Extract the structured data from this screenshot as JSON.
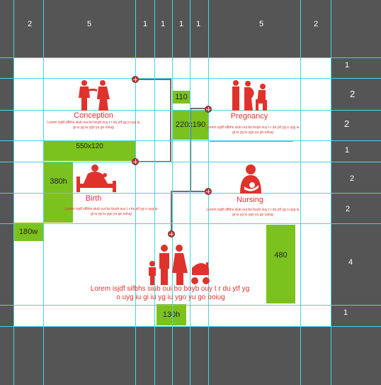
{
  "col_labels": [
    "2",
    "5",
    "1",
    "1",
    "1",
    "1",
    "5",
    "2"
  ],
  "row_labels": [
    "1",
    "2",
    "2",
    "1",
    "2",
    "2",
    "4",
    "1"
  ],
  "blocks": {
    "b110": "110",
    "b220x190": "220x190",
    "b550x120": "550x120",
    "b380h": "380h",
    "b180w": "180w",
    "b480": "480",
    "b130h": "130h"
  },
  "sections": {
    "conception": {
      "title": "Conception",
      "line1": "Lorem isjdf sifbhs siub oui bo boyb ouy t r du ytf yg   o uyg iu",
      "line2": "gi iu yg iu ygo yu go  ooiug"
    },
    "pregnancy": {
      "title": "Pregnancy",
      "line1": "Lorem isjdf sifbhs siub oui bo boyb ouy t r du ytf yg   o uyg iu",
      "line2": "gi iu yg iu ygo yu go  ooiug"
    },
    "birth": {
      "title": "Birth",
      "line1": "Lorem isjdf sifbhs siub oui bo boyb ouy t r du ytf yg   o uyg iu",
      "line2": "gi iu yg iu ygo yu go  ooiug"
    },
    "nursing": {
      "title": "Nursing",
      "line1": "Lorem isjdf sifbhs siub oui bo boyb ouy t r du ytf yg   o uyg iu",
      "line2": "gi iu yg iu ygo yu go  ooiug"
    },
    "family": {
      "line1": "Lorem isjdf sifbhs siub oui bo boyb ouy t r du ytf yg",
      "line2": "o uyg  iu gi iu yg iu ygo yu go  ooiug"
    }
  },
  "colors": {
    "accent": "#e0322c",
    "block": "#7cc21e",
    "grid": "#3fd8de",
    "background": "#555555"
  },
  "icons": [
    "couple-icon",
    "pregnant-couple-icon",
    "mother-baby-bed-icon",
    "nursing-mother-icon",
    "family-stroller-icon"
  ]
}
